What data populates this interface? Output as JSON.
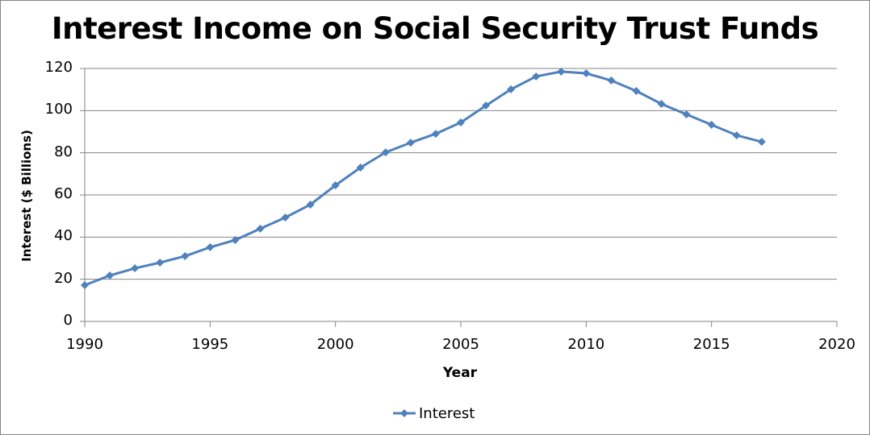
{
  "chart_data": {
    "type": "line",
    "title": "Interest Income on Social Security Trust Funds",
    "xlabel": "Year",
    "ylabel": "Interest ($ Billions)",
    "xlim": [
      1990,
      2020
    ],
    "ylim": [
      0,
      120
    ],
    "x_ticks": [
      "1990",
      "1995",
      "2000",
      "2005",
      "2010",
      "2015",
      "2020"
    ],
    "y_ticks": [
      "0",
      "20",
      "40",
      "60",
      "80",
      "100",
      "120"
    ],
    "grid": "horizontal",
    "legend_position": "bottom",
    "x": [
      1990,
      1991,
      1992,
      1993,
      1994,
      1995,
      1996,
      1997,
      1998,
      1999,
      2000,
      2001,
      2002,
      2003,
      2004,
      2005,
      2006,
      2007,
      2008,
      2009,
      2010,
      2011,
      2012,
      2013,
      2014,
      2015,
      2016,
      2017
    ],
    "series": [
      {
        "name": "Interest",
        "color": "#4F81BD",
        "marker": "diamond",
        "values": [
          17.2,
          21.8,
          25.2,
          27.9,
          31.0,
          35.2,
          38.6,
          44.0,
          49.3,
          55.4,
          64.6,
          73.0,
          80.2,
          84.8,
          89.0,
          94.4,
          102.4,
          110.1,
          116.2,
          118.5,
          117.7,
          114.3,
          109.3,
          103.2,
          98.2,
          93.3,
          88.3,
          85.2
        ]
      }
    ]
  },
  "legend": {
    "label": "Interest"
  }
}
